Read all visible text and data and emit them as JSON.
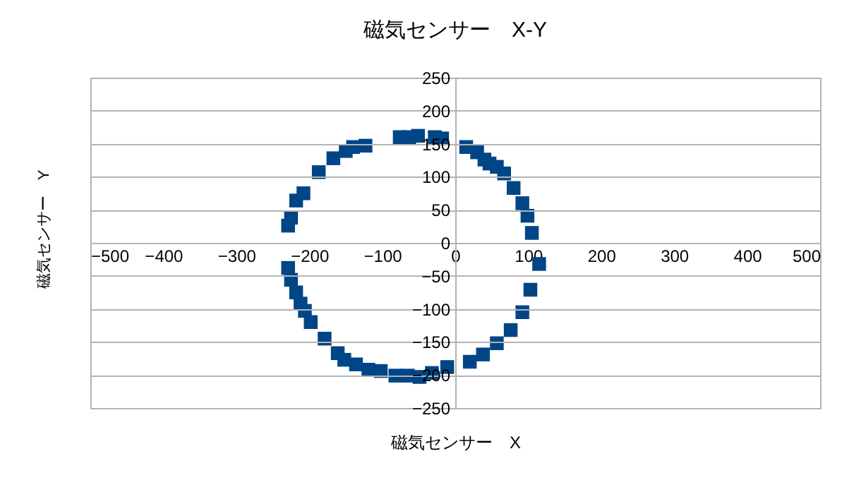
{
  "chart_data": {
    "type": "scatter",
    "title": "磁気センサー　X-Y",
    "xlabel": "磁気センサー　X",
    "ylabel": "磁気センサー　Y",
    "xlim": [
      -500,
      500
    ],
    "xticks": [
      -500,
      -400,
      -300,
      -200,
      -100,
      0,
      100,
      200,
      300,
      400,
      500
    ],
    "ylim": [
      -250,
      250
    ],
    "yticks": [
      -250,
      -200,
      -150,
      -100,
      -50,
      0,
      50,
      100,
      150,
      200,
      250
    ],
    "grid": "y",
    "marker": "square",
    "legend": false,
    "series": [
      {
        "color": "#004586",
        "x": [
          -229,
          -225,
          -218,
          -208,
          -187,
          -167,
          -150,
          -140,
          -123,
          -76,
          -63,
          -51,
          -28,
          -18,
          15,
          30,
          40,
          47,
          57,
          67,
          80,
          92,
          99,
          105,
          115,
          103,
          92,
          76,
          57,
          38,
          20,
          -11,
          -32,
          -49,
          -65,
          -82,
          -102,
          -119,
          -136,
          -152,
          -161,
          -179,
          -198,
          -206,
          -212,
          -218,
          -225,
          -229
        ],
        "values": [
          26,
          38,
          64,
          75,
          107,
          128,
          139,
          145,
          147,
          160,
          160,
          162,
          160,
          158,
          145,
          137,
          126,
          120,
          115,
          105,
          83,
          60,
          41,
          15,
          -32,
          -71,
          -105,
          -132,
          -152,
          -169,
          -180,
          -188,
          -197,
          -203,
          -201,
          -201,
          -194,
          -192,
          -184,
          -177,
          -167,
          -145,
          -120,
          -103,
          -92,
          -75,
          -56,
          -38
        ]
      }
    ]
  }
}
